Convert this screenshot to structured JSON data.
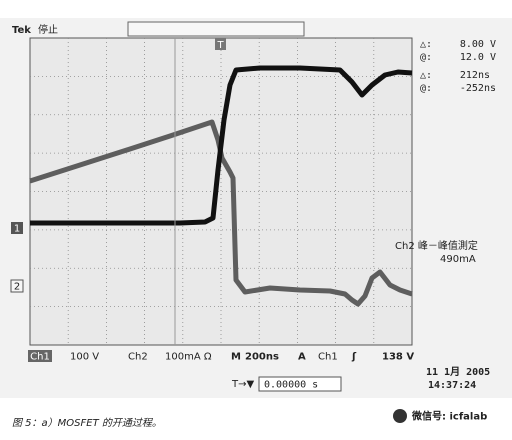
{
  "header": {
    "brand": "Tek",
    "status": "停止",
    "trigger_marker": "T"
  },
  "cursor_readout": {
    "delta_v_symbol": "△:",
    "delta_v": "8.00 V",
    "at_v_symbol": "@:",
    "at_v": "12.0 V",
    "delta_t_symbol": "△:",
    "delta_t": "212ns",
    "at_t_symbol": "@:",
    "at_t": "-252ns"
  },
  "measurement": {
    "label": "Ch2 峰－峰值測定",
    "value": "490mA"
  },
  "channel_markers": [
    "1",
    "2"
  ],
  "status_bar": {
    "ch1": "Ch1",
    "ch1_scale": "100 V",
    "ch2": "Ch2",
    "ch2_scale": "100mA Ω",
    "timebase_label": "M",
    "timebase": "200ns",
    "trigger_label": "A",
    "trigger_source": "Ch1",
    "trigger_slope": "ʃ",
    "trigger_level": "138 V"
  },
  "trigger_position": {
    "icon": "T→▼",
    "value": "0.00000 s"
  },
  "timestamp": {
    "date": "11 1月  2005",
    "time": "14:37:24"
  },
  "caption": "图 5：a）MOSFET 的开通过程。",
  "watermark": "微信号: icfalab"
}
